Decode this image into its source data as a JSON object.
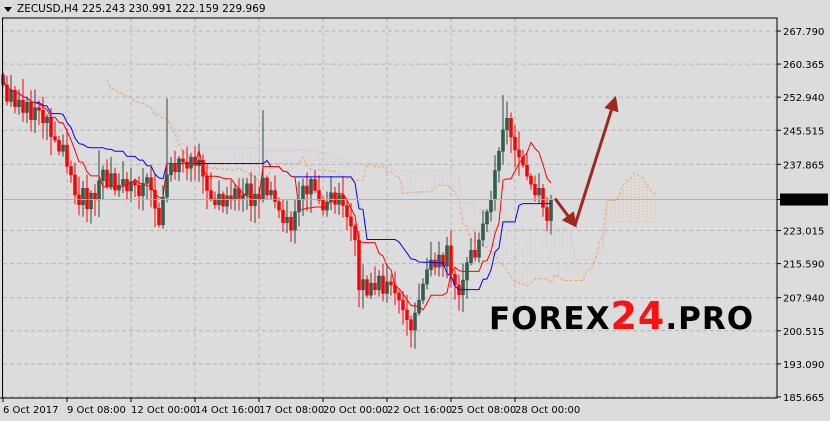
{
  "header": {
    "symbol": "ZECUSD,H4",
    "open": "225.243",
    "high": "230.991",
    "low": "222.159",
    "close": "229.969"
  },
  "watermark": {
    "prefix": "FOREX",
    "number": "24",
    "suffix": ".PRO"
  },
  "colors": {
    "background": "#dcdcdc",
    "bull": "#2f5f50",
    "bear": "#ff0000",
    "tenkan": "#ff0000",
    "kijun": "#0000ff",
    "span_a": "#f4a460",
    "span_b": "#d8bfd8",
    "arrow": "#a0281e",
    "grid": "#b4b4b4"
  },
  "chart_data": {
    "type": "candlestick",
    "timeframe": "H4",
    "indicator": "Ichimoku Kinko Hyo",
    "grid": true,
    "ylim": [
      185.665,
      270.5
    ],
    "y_ticks": [
      "267.790",
      "260.365",
      "252.940",
      "245.515",
      "237.865",
      "229.969",
      "223.015",
      "215.590",
      "207.940",
      "200.515",
      "193.090",
      "185.665"
    ],
    "current_price": "229.969",
    "x_ticks": [
      "6 Oct 2017",
      "9 Oct 08:00",
      "12 Oct 00:00",
      "14 Oct 16:00",
      "17 Oct 08:00",
      "20 Oct 00:00",
      "22 Oct 16:00",
      "25 Oct 08:00",
      "28 Oct 00:00"
    ],
    "first_open": 258.0,
    "closes": [
      255.7,
      252.0,
      254.5,
      250.8,
      252.3,
      249.5,
      251.8,
      247.9,
      250.6,
      250.0,
      247.2,
      248.5,
      244.1,
      243.3,
      240.8,
      242.2,
      237.4,
      235.5,
      231.0,
      228.8,
      232.5,
      227.9,
      231.4,
      229.9,
      234.2,
      236.6,
      233.0,
      235.8,
      232.1,
      233.2,
      234.5,
      231.9,
      234.0,
      233.2,
      230.8,
      233.6,
      234.9,
      232.1,
      228.0,
      224.3,
      230.5,
      235.5,
      237.9,
      236.2,
      239.1,
      238.4,
      237.0,
      239.5,
      237.6,
      238.8,
      235.2,
      232.0,
      230.1,
      228.8,
      231.2,
      228.5,
      230.8,
      229.9,
      232.4,
      230.2,
      231.0,
      233.5,
      228.6,
      231.2,
      229.9,
      234.8,
      231.0,
      232.0,
      229.5,
      227.6,
      224.8,
      226.0,
      223.1,
      227.2,
      229.9,
      233.0,
      231.2,
      234.5,
      232.0,
      229.8,
      227.6,
      229.4,
      231.5,
      228.9,
      231.0,
      228.6,
      226.1,
      224.0,
      220.9,
      209.7,
      212.0,
      208.5,
      211.2,
      209.7,
      212.8,
      208.9,
      211.5,
      210.8,
      209.0,
      207.4,
      205.2,
      203.0,
      200.7,
      204.5,
      207.4,
      211.0,
      214.2,
      216.4,
      214.8,
      217.5,
      215.0,
      219.6,
      213.2,
      210.8,
      208.6,
      211.9,
      215.8,
      218.6,
      217.0,
      220.9,
      224.5,
      227.2,
      229.9,
      236.5,
      240.8,
      245.6,
      248.2,
      244.0,
      241.1,
      239.5,
      237.7,
      235.2,
      233.4,
      231.0,
      232.5,
      228.2,
      225.243,
      229.969
    ],
    "last_bar": {
      "open": 225.243,
      "high": 230.991,
      "low": 222.159,
      "close": 229.969
    },
    "annotations": [
      {
        "type": "arrow",
        "from": {
          "bar": 138,
          "price": 230.2
        },
        "to": {
          "bar": 143,
          "price": 224.2
        }
      },
      {
        "type": "arrow",
        "from": {
          "bar": 143,
          "price": 224.2
        },
        "to": {
          "bar": 153,
          "price": 252.6
        }
      }
    ]
  }
}
